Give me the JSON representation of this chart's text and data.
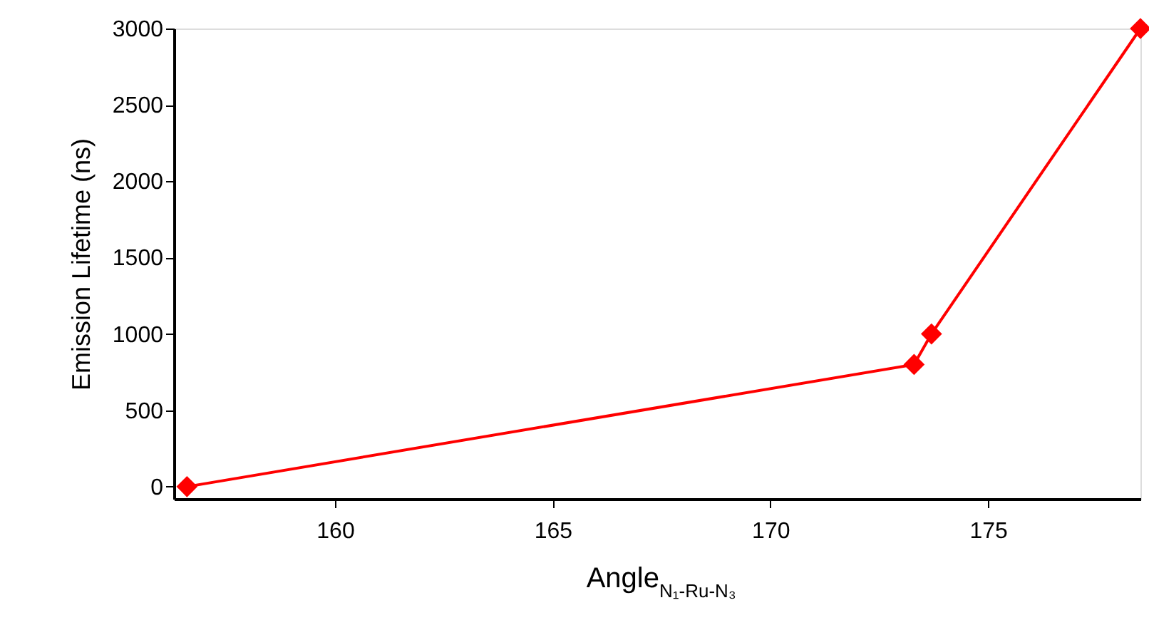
{
  "chart_data": {
    "type": "line",
    "xlabel": "Angle$_{N₁-Ru-N₃}$",
    "ylabel": "Emission Lifetime (ns)",
    "x": [
      156.6,
      173.3,
      173.7,
      178.5
    ],
    "series": [
      {
        "color": "#ff0000",
        "values": [
          0,
          800,
          1000,
          3000
        ]
      }
    ],
    "xlim": [
      156.3,
      178.5
    ],
    "xticks": [
      160,
      165,
      170,
      175
    ],
    "ylim": [
      -80,
      3000
    ],
    "yticks": [
      0,
      500,
      1000,
      1500,
      2000,
      2500,
      3000
    ],
    "grid": false,
    "marker": "diamond",
    "line_style": "solid"
  }
}
